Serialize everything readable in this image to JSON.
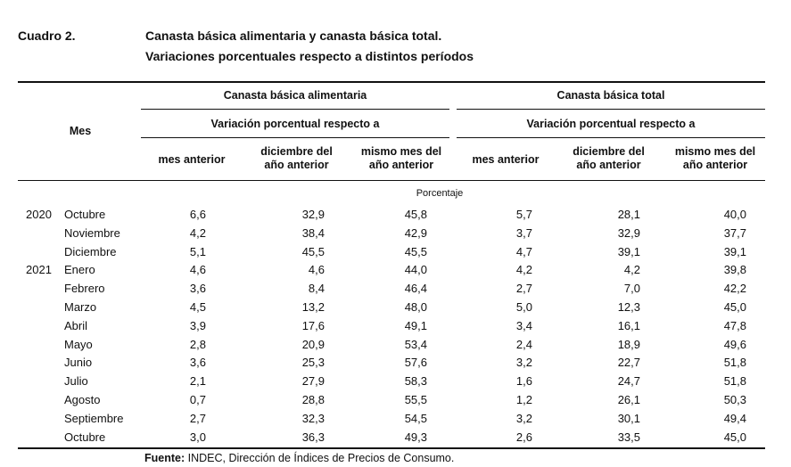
{
  "caption": {
    "number": "Cuadro 2.",
    "title_line1": "Canasta básica alimentaria y canasta básica total.",
    "title_line2": "Variaciones porcentuales respecto a distintos períodos"
  },
  "table": {
    "row_header": "Mes",
    "groups": [
      {
        "label": "Canasta básica alimentaria",
        "sub_label": "Variación porcentual respecto a"
      },
      {
        "label": "Canasta básica total",
        "sub_label": "Variación porcentual respecto a"
      }
    ],
    "columns": [
      [
        "mes anterior"
      ],
      [
        "diciembre del",
        "año anterior"
      ],
      [
        "mismo mes del",
        "año anterior"
      ],
      [
        "mes anterior"
      ],
      [
        "diciembre del",
        "año anterior"
      ],
      [
        "mismo mes del",
        "año anterior"
      ]
    ],
    "unit_label": "Porcentaje",
    "rows": [
      {
        "year": "2020",
        "month": "Octubre",
        "values": [
          "6,6",
          "32,9",
          "45,8",
          "5,7",
          "28,1",
          "40,0"
        ]
      },
      {
        "year": "",
        "month": "Noviembre",
        "values": [
          "4,2",
          "38,4",
          "42,9",
          "3,7",
          "32,9",
          "37,7"
        ]
      },
      {
        "year": "",
        "month": "Diciembre",
        "values": [
          "5,1",
          "45,5",
          "45,5",
          "4,7",
          "39,1",
          "39,1"
        ]
      },
      {
        "year": "2021",
        "month": "Enero",
        "values": [
          "4,6",
          "4,6",
          "44,0",
          "4,2",
          "4,2",
          "39,8"
        ]
      },
      {
        "year": "",
        "month": "Febrero",
        "values": [
          "3,6",
          "8,4",
          "46,4",
          "2,7",
          "7,0",
          "42,2"
        ]
      },
      {
        "year": "",
        "month": "Marzo",
        "values": [
          "4,5",
          "13,2",
          "48,0",
          "5,0",
          "12,3",
          "45,0"
        ]
      },
      {
        "year": "",
        "month": "Abril",
        "values": [
          "3,9",
          "17,6",
          "49,1",
          "3,4",
          "16,1",
          "47,8"
        ]
      },
      {
        "year": "",
        "month": "Mayo",
        "values": [
          "2,8",
          "20,9",
          "53,4",
          "2,4",
          "18,9",
          "49,6"
        ]
      },
      {
        "year": "",
        "month": "Junio",
        "values": [
          "3,6",
          "25,3",
          "57,6",
          "3,2",
          "22,7",
          "51,8"
        ]
      },
      {
        "year": "",
        "month": "Julio",
        "values": [
          "2,1",
          "27,9",
          "58,3",
          "1,6",
          "24,7",
          "51,8"
        ]
      },
      {
        "year": "",
        "month": "Agosto",
        "values": [
          "0,7",
          "28,8",
          "55,5",
          "1,2",
          "26,1",
          "50,3"
        ]
      },
      {
        "year": "",
        "month": "Septiembre",
        "values": [
          "2,7",
          "32,3",
          "54,5",
          "3,2",
          "30,1",
          "49,4"
        ]
      },
      {
        "year": "",
        "month": "Octubre",
        "values": [
          "3,0",
          "36,3",
          "49,3",
          "2,6",
          "33,5",
          "45,0"
        ]
      }
    ]
  },
  "source": {
    "label": "Fuente:",
    "text": " INDEC, Dirección de Índices de Precios de Consumo."
  }
}
